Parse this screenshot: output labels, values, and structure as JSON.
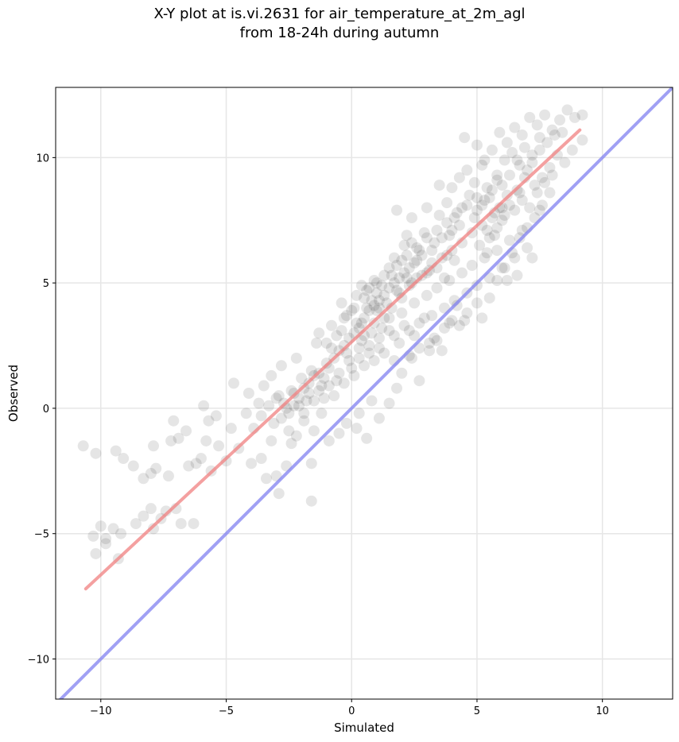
{
  "chart_data": {
    "type": "scatter",
    "title_line1": "X-Y plot at is.vi.2631 for air_temperature_at_2m_agl",
    "title_line2": "from 18-24h during autumn",
    "xlabel": "Simulated",
    "ylabel": "Observed",
    "xlim": [
      -11.8,
      12.8
    ],
    "ylim": [
      -11.6,
      12.8
    ],
    "xticks": [
      -10,
      -5,
      0,
      5,
      10
    ],
    "yticks": [
      -10,
      -5,
      0,
      5,
      10
    ],
    "xtick_labels": [
      "−10",
      "−5",
      "0",
      "5",
      "10"
    ],
    "ytick_labels": [
      "−10",
      "−5",
      "0",
      "5",
      "10"
    ],
    "grid": true,
    "colors": {
      "points": "#000000",
      "fit_line": "#f08080",
      "identity_line": "#8080f0"
    },
    "fit_line": {
      "x": [
        -10.6,
        9.1
      ],
      "y": [
        -7.2,
        11.1
      ]
    },
    "identity_line": {
      "x": [
        -11.8,
        12.8
      ],
      "y": [
        -11.8,
        12.8
      ]
    },
    "points": [
      [
        -10.7,
        -1.5
      ],
      [
        -10.2,
        -1.8
      ],
      [
        -9.4,
        -1.7
      ],
      [
        -9.1,
        -2.0
      ],
      [
        -8.7,
        -2.3
      ],
      [
        -8.3,
        -2.8
      ],
      [
        -8.0,
        -2.6
      ],
      [
        -7.8,
        -2.4
      ],
      [
        -7.3,
        -2.7
      ],
      [
        -7.2,
        -1.3
      ],
      [
        -7.1,
        -0.5
      ],
      [
        -6.9,
        -1.2
      ],
      [
        -6.6,
        -0.9
      ],
      [
        -6.5,
        -2.3
      ],
      [
        -6.2,
        -2.2
      ],
      [
        -6.0,
        -2.0
      ],
      [
        -5.8,
        -1.3
      ],
      [
        -5.7,
        -0.5
      ],
      [
        -5.6,
        -2.5
      ],
      [
        -5.3,
        -1.5
      ],
      [
        -5.0,
        -2.1
      ],
      [
        -4.8,
        -0.8
      ],
      [
        -4.7,
        1.0
      ],
      [
        -4.5,
        -1.6
      ],
      [
        -4.2,
        -0.2
      ],
      [
        -10.3,
        -5.1
      ],
      [
        -10.2,
        -5.8
      ],
      [
        -10.0,
        -4.7
      ],
      [
        -9.8,
        -5.4
      ],
      [
        -9.8,
        -5.2
      ],
      [
        -9.5,
        -4.8
      ],
      [
        -9.2,
        -5.0
      ],
      [
        -8.6,
        -4.6
      ],
      [
        -8.3,
        -4.3
      ],
      [
        -8.0,
        -4.0
      ],
      [
        -7.9,
        -4.8
      ],
      [
        -7.6,
        -4.4
      ],
      [
        -7.4,
        -4.1
      ],
      [
        -7.0,
        -4.0
      ],
      [
        -6.8,
        -4.6
      ],
      [
        -6.3,
        -4.6
      ],
      [
        -9.3,
        -6.0
      ],
      [
        -7.9,
        -1.5
      ],
      [
        -5.9,
        0.1
      ],
      [
        -5.4,
        -0.3
      ],
      [
        -4.0,
        -2.2
      ],
      [
        -3.6,
        -2.0
      ],
      [
        -3.4,
        -2.8
      ],
      [
        -3.0,
        -2.7
      ],
      [
        -2.9,
        -3.4
      ],
      [
        -2.6,
        -2.3
      ],
      [
        -2.4,
        -1.4
      ],
      [
        -1.6,
        -3.7
      ],
      [
        -1.6,
        -2.2
      ],
      [
        -3.2,
        -1.3
      ],
      [
        -2.8,
        -0.4
      ],
      [
        -2.2,
        -1.1
      ],
      [
        -1.9,
        -0.5
      ],
      [
        -1.5,
        -0.9
      ],
      [
        -1.2,
        -0.2
      ],
      [
        -0.9,
        -1.3
      ],
      [
        -0.5,
        -1.0
      ],
      [
        -0.2,
        -0.6
      ],
      [
        0.2,
        -0.8
      ],
      [
        0.6,
        -1.2
      ],
      [
        0.3,
        -0.2
      ],
      [
        0.8,
        0.3
      ],
      [
        1.1,
        -0.4
      ],
      [
        1.5,
        0.2
      ],
      [
        1.8,
        0.8
      ],
      [
        -4.1,
        0.6
      ],
      [
        -3.7,
        0.2
      ],
      [
        -3.5,
        0.9
      ],
      [
        -3.2,
        1.3
      ],
      [
        -3.0,
        0.4
      ],
      [
        -2.8,
        1.7
      ],
      [
        -2.6,
        0.0
      ],
      [
        -2.4,
        0.7
      ],
      [
        -2.2,
        2.0
      ],
      [
        -2.0,
        1.2
      ],
      [
        -1.8,
        0.3
      ],
      [
        -1.6,
        1.5
      ],
      [
        -1.4,
        2.6
      ],
      [
        -1.2,
        0.9
      ],
      [
        -1.0,
        1.8
      ],
      [
        -0.8,
        2.4
      ],
      [
        -0.6,
        1.1
      ],
      [
        -0.4,
        3.1
      ],
      [
        -0.2,
        2.2
      ],
      [
        0.0,
        1.6
      ],
      [
        0.2,
        3.4
      ],
      [
        0.4,
        2.7
      ],
      [
        0.6,
        4.0
      ],
      [
        0.8,
        3.0
      ],
      [
        1.0,
        4.6
      ],
      [
        -2.3,
        0.1
      ],
      [
        -2.5,
        -0.2
      ],
      [
        -2.1,
        0.4
      ],
      [
        -1.9,
        0.8
      ],
      [
        -1.7,
        1.0
      ],
      [
        -1.5,
        1.3
      ],
      [
        -1.3,
        1.4
      ],
      [
        -1.1,
        1.2
      ],
      [
        -0.9,
        1.6
      ],
      [
        -0.7,
        2.0
      ],
      [
        -0.5,
        2.3
      ],
      [
        -0.3,
        2.5
      ],
      [
        -0.1,
        2.8
      ],
      [
        0.1,
        3.0
      ],
      [
        0.3,
        3.2
      ],
      [
        0.5,
        3.6
      ],
      [
        0.7,
        3.9
      ],
      [
        0.9,
        4.1
      ],
      [
        1.1,
        4.3
      ],
      [
        1.3,
        4.5
      ],
      [
        1.5,
        4.8
      ],
      [
        1.7,
        5.0
      ],
      [
        1.9,
        5.2
      ],
      [
        2.1,
        5.4
      ],
      [
        2.3,
        5.6
      ],
      [
        1.0,
        5.0
      ],
      [
        1.3,
        5.3
      ],
      [
        1.6,
        4.0
      ],
      [
        1.8,
        5.7
      ],
      [
        2.0,
        4.4
      ],
      [
        2.2,
        6.1
      ],
      [
        2.4,
        5.0
      ],
      [
        2.6,
        6.4
      ],
      [
        2.8,
        5.3
      ],
      [
        3.0,
        6.8
      ],
      [
        3.2,
        5.8
      ],
      [
        3.4,
        7.1
      ],
      [
        3.6,
        6.0
      ],
      [
        3.8,
        7.4
      ],
      [
        4.0,
        6.3
      ],
      [
        4.2,
        7.8
      ],
      [
        4.4,
        6.6
      ],
      [
        4.6,
        8.1
      ],
      [
        4.8,
        7.0
      ],
      [
        5.0,
        8.4
      ],
      [
        5.2,
        7.3
      ],
      [
        5.4,
        8.8
      ],
      [
        5.6,
        7.6
      ],
      [
        5.8,
        9.1
      ],
      [
        6.0,
        8.0
      ],
      [
        1.2,
        3.2
      ],
      [
        1.5,
        3.6
      ],
      [
        1.7,
        2.9
      ],
      [
        2.0,
        3.8
      ],
      [
        2.3,
        3.1
      ],
      [
        2.5,
        4.2
      ],
      [
        2.7,
        3.4
      ],
      [
        3.0,
        4.5
      ],
      [
        3.2,
        3.7
      ],
      [
        3.4,
        4.8
      ],
      [
        3.7,
        4.0
      ],
      [
        3.9,
        5.1
      ],
      [
        4.1,
        4.3
      ],
      [
        4.4,
        5.4
      ],
      [
        4.6,
        4.6
      ],
      [
        4.8,
        5.7
      ],
      [
        5.0,
        4.9
      ],
      [
        5.3,
        6.0
      ],
      [
        5.5,
        5.2
      ],
      [
        5.8,
        6.3
      ],
      [
        6.0,
        5.6
      ],
      [
        6.3,
        6.7
      ],
      [
        6.5,
        6.0
      ],
      [
        6.8,
        7.1
      ],
      [
        7.0,
        6.4
      ],
      [
        2.0,
        1.4
      ],
      [
        2.4,
        2.0
      ],
      [
        2.7,
        1.1
      ],
      [
        3.1,
        2.3
      ],
      [
        3.4,
        2.7
      ],
      [
        3.7,
        3.2
      ],
      [
        4.0,
        3.5
      ],
      [
        4.3,
        3.3
      ],
      [
        4.6,
        3.8
      ],
      [
        5.0,
        4.2
      ],
      [
        5.2,
        3.6
      ],
      [
        5.5,
        4.4
      ],
      [
        5.8,
        5.1
      ],
      [
        6.1,
        5.6
      ],
      [
        6.4,
        6.2
      ],
      [
        6.7,
        6.8
      ],
      [
        7.0,
        7.2
      ],
      [
        7.3,
        7.6
      ],
      [
        7.6,
        8.1
      ],
      [
        7.9,
        8.6
      ],
      [
        6.6,
        5.3
      ],
      [
        6.2,
        5.1
      ],
      [
        7.2,
        6.0
      ],
      [
        7.5,
        7.9
      ],
      [
        8.0,
        9.3
      ],
      [
        4.5,
        10.8
      ],
      [
        5.0,
        10.5
      ],
      [
        5.3,
        9.9
      ],
      [
        5.6,
        10.3
      ],
      [
        5.9,
        11.0
      ],
      [
        6.2,
        10.6
      ],
      [
        6.5,
        11.2
      ],
      [
        6.8,
        10.9
      ],
      [
        7.1,
        11.6
      ],
      [
        7.4,
        11.3
      ],
      [
        7.7,
        11.7
      ],
      [
        8.0,
        11.1
      ],
      [
        8.3,
        11.5
      ],
      [
        8.6,
        11.9
      ],
      [
        8.9,
        11.6
      ],
      [
        9.2,
        11.7
      ],
      [
        9.2,
        10.7
      ],
      [
        8.8,
        10.3
      ],
      [
        8.5,
        9.8
      ],
      [
        8.2,
        10.1
      ],
      [
        7.9,
        9.6
      ],
      [
        7.6,
        9.2
      ],
      [
        7.3,
        8.9
      ],
      [
        7.0,
        9.5
      ],
      [
        6.7,
        8.6
      ],
      [
        4.0,
        8.8
      ],
      [
        4.3,
        9.2
      ],
      [
        4.6,
        9.5
      ],
      [
        4.9,
        9.0
      ],
      [
        5.2,
        9.7
      ],
      [
        5.5,
        8.4
      ],
      [
        5.8,
        9.3
      ],
      [
        6.1,
        9.9
      ],
      [
        6.4,
        10.2
      ],
      [
        6.7,
        9.7
      ],
      [
        3.5,
        8.9
      ],
      [
        3.8,
        8.2
      ],
      [
        4.1,
        7.6
      ],
      [
        4.4,
        8.0
      ],
      [
        4.7,
        8.5
      ],
      [
        5.0,
        7.9
      ],
      [
        5.3,
        8.3
      ],
      [
        5.6,
        8.7
      ],
      [
        5.9,
        8.0
      ],
      [
        6.2,
        8.5
      ],
      [
        6.5,
        7.9
      ],
      [
        6.8,
        8.3
      ],
      [
        7.1,
        8.0
      ],
      [
        7.4,
        8.6
      ],
      [
        7.7,
        9.0
      ],
      [
        0.5,
        4.4
      ],
      [
        0.7,
        4.8
      ],
      [
        0.9,
        5.1
      ],
      [
        1.1,
        4.0
      ],
      [
        1.3,
        3.6
      ],
      [
        1.5,
        5.6
      ],
      [
        1.7,
        6.0
      ],
      [
        1.9,
        4.6
      ],
      [
        2.1,
        6.5
      ],
      [
        2.3,
        4.9
      ],
      [
        2.5,
        5.8
      ],
      [
        2.7,
        6.3
      ],
      [
        2.9,
        7.0
      ],
      [
        3.1,
        5.5
      ],
      [
        3.3,
        6.6
      ],
      [
        3.5,
        7.7
      ],
      [
        3.7,
        5.2
      ],
      [
        3.9,
        6.9
      ],
      [
        4.1,
        5.9
      ],
      [
        4.3,
        7.3
      ],
      [
        1.8,
        7.9
      ],
      [
        2.4,
        7.6
      ],
      [
        3.0,
        8.0
      ],
      [
        2.2,
        6.9
      ],
      [
        2.6,
        5.2
      ],
      [
        -0.4,
        4.2
      ],
      [
        -0.2,
        3.7
      ],
      [
        0.0,
        3.9
      ],
      [
        0.2,
        4.5
      ],
      [
        0.4,
        4.9
      ],
      [
        0.3,
        2.4
      ],
      [
        0.5,
        2.9
      ],
      [
        0.7,
        2.5
      ],
      [
        0.9,
        3.4
      ],
      [
        1.1,
        2.8
      ],
      [
        1.3,
        2.2
      ],
      [
        1.5,
        3.1
      ],
      [
        1.7,
        1.9
      ],
      [
        1.9,
        2.6
      ],
      [
        2.1,
        3.3
      ],
      [
        2.3,
        2.1
      ],
      [
        2.5,
        2.9
      ],
      [
        2.7,
        2.4
      ],
      [
        2.9,
        3.6
      ],
      [
        3.1,
        2.6
      ],
      [
        3.3,
        2.8
      ],
      [
        3.6,
        2.3
      ],
      [
        3.9,
        3.4
      ],
      [
        4.2,
        4.1
      ],
      [
        4.5,
        3.5
      ],
      [
        -1.3,
        3.0
      ],
      [
        -1.0,
        2.6
      ],
      [
        -0.8,
        3.3
      ],
      [
        -0.6,
        2.9
      ],
      [
        -0.3,
        3.6
      ],
      [
        0.1,
        4.0
      ],
      [
        0.4,
        3.4
      ],
      [
        0.6,
        4.7
      ],
      [
        0.8,
        4.3
      ],
      [
        1.0,
        3.9
      ],
      [
        1.2,
        4.9
      ],
      [
        1.4,
        4.2
      ],
      [
        1.6,
        5.3
      ],
      [
        1.8,
        4.7
      ],
      [
        2.0,
        5.9
      ],
      [
        2.2,
        5.2
      ],
      [
        2.4,
        6.6
      ],
      [
        2.6,
        5.9
      ],
      [
        2.8,
        6.1
      ],
      [
        3.0,
        5.4
      ],
      [
        3.2,
        6.3
      ],
      [
        3.4,
        5.6
      ],
      [
        3.6,
        6.8
      ],
      [
        3.8,
        6.1
      ],
      [
        4.0,
        7.1
      ],
      [
        -3.9,
        -0.8
      ],
      [
        -3.6,
        -0.3
      ],
      [
        -3.3,
        0.1
      ],
      [
        -3.1,
        -0.6
      ],
      [
        -2.9,
        0.5
      ],
      [
        -2.7,
        0.2
      ],
      [
        -2.5,
        -0.9
      ],
      [
        -2.3,
        0.6
      ],
      [
        -2.1,
        0.1
      ],
      [
        -1.9,
        -0.2
      ],
      [
        -1.7,
        0.6
      ],
      [
        -1.5,
        0.3
      ],
      [
        -1.3,
        0.7
      ],
      [
        -1.1,
        0.4
      ],
      [
        -0.9,
        0.9
      ],
      [
        -0.7,
        0.5
      ],
      [
        -0.5,
        1.4
      ],
      [
        -0.3,
        1.0
      ],
      [
        -0.1,
        1.9
      ],
      [
        0.1,
        1.3
      ],
      [
        0.3,
        2.0
      ],
      [
        0.5,
        1.7
      ],
      [
        0.7,
        2.2
      ],
      [
        0.9,
        1.9
      ],
      [
        1.1,
        2.4
      ],
      [
        5.4,
        6.2
      ],
      [
        5.7,
        6.9
      ],
      [
        6.0,
        7.5
      ],
      [
        6.3,
        8.1
      ],
      [
        6.6,
        8.7
      ],
      [
        6.9,
        9.2
      ],
      [
        7.2,
        9.8
      ],
      [
        7.5,
        10.3
      ],
      [
        7.8,
        10.6
      ],
      [
        8.1,
        10.9
      ],
      [
        8.4,
        11.0
      ],
      [
        5.1,
        6.5
      ],
      [
        5.4,
        7.1
      ],
      [
        5.7,
        7.8
      ],
      [
        6.0,
        8.9
      ],
      [
        6.3,
        9.3
      ],
      [
        6.6,
        9.9
      ],
      [
        6.9,
        10.4
      ],
      [
        7.2,
        10.1
      ],
      [
        7.5,
        10.8
      ],
      [
        4.9,
        7.6
      ],
      [
        5.2,
        8.1
      ],
      [
        5.5,
        6.8
      ],
      [
        5.8,
        7.2
      ],
      [
        6.1,
        7.7
      ]
    ]
  }
}
